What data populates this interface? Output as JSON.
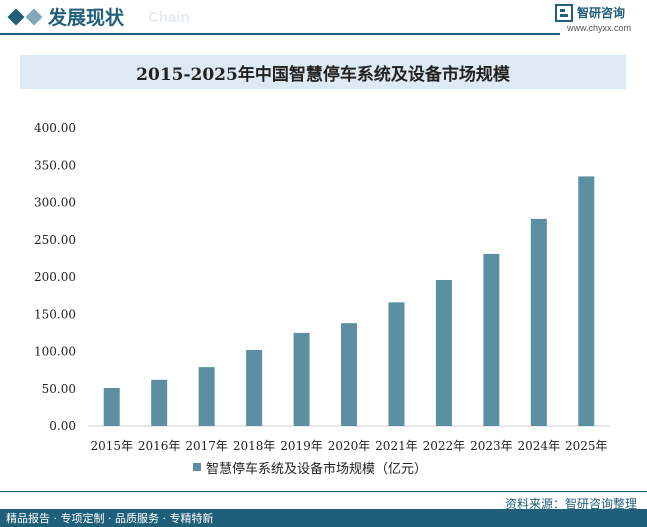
{
  "header": {
    "section_title": "发展现状",
    "section_subtitle": "Chain",
    "brand_name": "智研咨询",
    "brand_url": "www.chyxx.com"
  },
  "colors": {
    "brand": "#1f5f7a",
    "bar": "#5b8fa1",
    "title_bg": "#ddeaf3",
    "diamond_dark": "#1f5f7a",
    "diamond_light": "#7fa9bb"
  },
  "legend": {
    "label": "智慧停车系统及设备市场规模（亿元）"
  },
  "footer": {
    "source": "资料来源：智研咨询整理",
    "slogan": "精品报告 · 专项定制 · 品质服务 · 专精特新"
  },
  "chart_data": {
    "type": "bar",
    "title": "2015-2025年中国智慧停车系统及设备市场规模",
    "categories": [
      "2015年",
      "2016年",
      "2017年",
      "2018年",
      "2019年",
      "2020年",
      "2021年",
      "2022年",
      "2023年",
      "2024年",
      "2025年"
    ],
    "series": [
      {
        "name": "智慧停车系统及设备市场规模（亿元）",
        "values": [
          51,
          62,
          79,
          102,
          125,
          138,
          166,
          196,
          231,
          278,
          335
        ]
      }
    ],
    "ylim": [
      0,
      400
    ],
    "yticks": [
      0,
      50,
      100,
      150,
      200,
      250,
      300,
      350,
      400
    ],
    "ytick_labels": [
      "0.00",
      "50.00",
      "100.00",
      "150.00",
      "200.00",
      "250.00",
      "300.00",
      "350.00",
      "400.00"
    ],
    "xlabel": "",
    "ylabel": "",
    "grid": false,
    "legend_position": "bottom-center"
  }
}
